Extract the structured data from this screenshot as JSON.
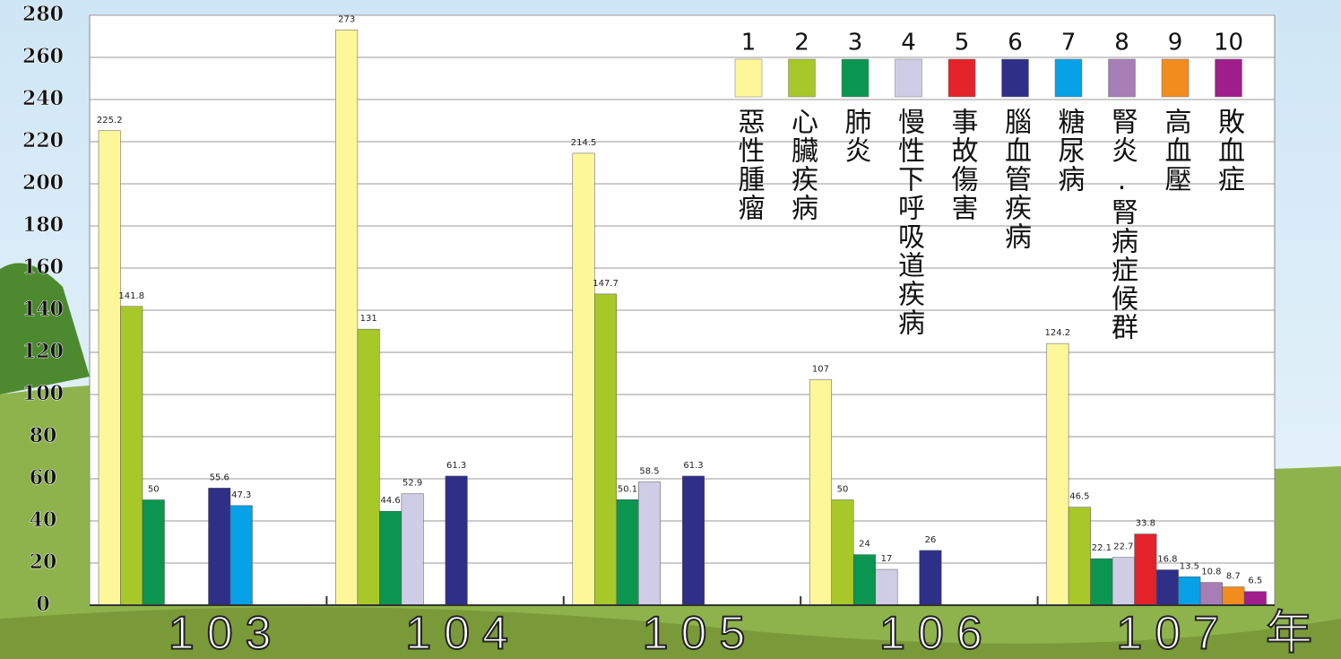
{
  "chart_data": {
    "type": "bar",
    "categories": [
      "103",
      "104",
      "105",
      "106",
      "107"
    ],
    "xlabel": "年",
    "ylim": [
      0,
      280
    ],
    "yticks": [
      0,
      20,
      40,
      60,
      80,
      100,
      120,
      140,
      160,
      180,
      200,
      220,
      240,
      260,
      280
    ],
    "grid": true,
    "series": [
      {
        "number": 1,
        "name": "惡性腫瘤",
        "color": "#fdf79a",
        "values": [
          225.2,
          273,
          214.5,
          107,
          124.2
        ]
      },
      {
        "number": 2,
        "name": "心臟疾病",
        "color": "#a8c82a",
        "values": [
          141.8,
          131,
          147.7,
          50,
          46.5
        ]
      },
      {
        "number": 3,
        "name": "肺炎",
        "color": "#0a9650",
        "values": [
          50,
          44.6,
          50.1,
          24,
          22.1
        ]
      },
      {
        "number": 4,
        "name": "慢性下呼吸道疾病",
        "color": "#cfcde6",
        "values": [
          null,
          52.9,
          58.5,
          17,
          22.7
        ]
      },
      {
        "number": 5,
        "name": "事故傷害",
        "color": "#e3222a",
        "values": [
          null,
          null,
          null,
          null,
          33.8
        ]
      },
      {
        "number": 6,
        "name": "腦血管疾病",
        "color": "#2e3087",
        "values": [
          55.6,
          61.3,
          61.3,
          26,
          16.8
        ]
      },
      {
        "number": 7,
        "name": "糖尿病",
        "color": "#06a0e6",
        "values": [
          47.3,
          null,
          null,
          null,
          13.5
        ]
      },
      {
        "number": 8,
        "name": "腎炎.腎病症候群",
        "color": "#a77db5",
        "values": [
          null,
          null,
          null,
          null,
          10.8
        ]
      },
      {
        "number": 9,
        "name": "高血壓",
        "color": "#f28c1e",
        "values": [
          null,
          null,
          null,
          null,
          8.7
        ]
      },
      {
        "number": 10,
        "name": "敗血症",
        "color": "#a01e8c",
        "values": [
          null,
          null,
          null,
          null,
          6.5
        ]
      }
    ]
  }
}
